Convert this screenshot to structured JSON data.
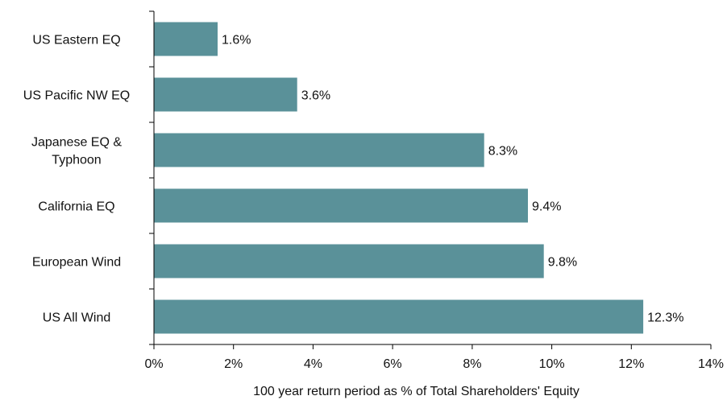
{
  "chart_data": {
    "type": "bar",
    "orientation": "horizontal",
    "categories": [
      [
        "US Eastern EQ"
      ],
      [
        "US Pacific NW EQ"
      ],
      [
        "Japanese EQ &",
        "Typhoon"
      ],
      [
        "California EQ"
      ],
      [
        "European Wind"
      ],
      [
        "US All Wind"
      ]
    ],
    "values": [
      1.6,
      3.6,
      8.3,
      9.4,
      9.8,
      12.3
    ],
    "value_labels": [
      "1.6%",
      "3.6%",
      "8.3%",
      "9.4%",
      "9.8%",
      "12.3%"
    ],
    "x_ticks": [
      "0%",
      "2%",
      "4%",
      "6%",
      "8%",
      "10%",
      "12%",
      "14%"
    ],
    "xlim": [
      0,
      14
    ],
    "xlabel": "100 year return period as % of Total Shareholders' Equity",
    "ylabel": "",
    "title": "",
    "grid": false,
    "bar_color": "#5a9199"
  }
}
